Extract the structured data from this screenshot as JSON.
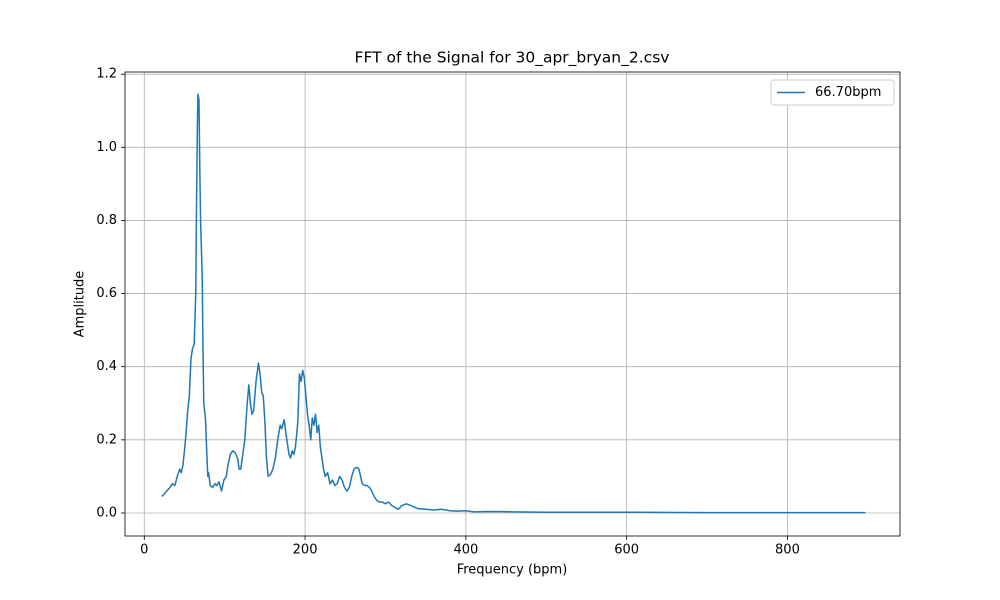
{
  "chart_data": {
    "type": "line",
    "title": "FFT of the Signal for 30_apr_bryan_2.csv",
    "xlabel": "Frequency (bpm)",
    "ylabel": "Amplitude",
    "x": [
      22,
      28,
      32,
      35,
      38,
      41,
      44,
      46,
      48,
      50,
      52,
      54,
      56,
      58,
      60,
      62,
      64,
      65,
      66,
      66.7,
      68,
      69,
      70,
      72,
      73,
      74,
      76,
      78,
      79,
      80,
      82,
      85,
      88,
      90,
      93,
      96,
      99,
      102,
      104,
      107,
      110,
      113,
      116,
      118,
      120,
      125,
      128,
      130,
      132,
      134,
      136,
      139,
      142,
      144,
      146,
      148,
      150,
      152,
      154,
      157,
      160,
      163,
      166,
      169,
      171,
      174,
      176,
      178,
      180,
      182,
      184,
      186,
      188,
      191,
      193,
      195,
      197,
      199,
      201,
      203,
      205,
      207,
      209,
      211,
      213,
      215,
      217,
      219,
      221,
      223,
      225,
      228,
      231,
      234,
      237,
      240,
      243,
      246,
      249,
      252,
      255,
      258,
      261,
      264,
      267,
      269,
      271,
      274,
      277,
      280,
      283,
      286,
      289,
      292,
      296,
      300,
      304,
      308,
      312,
      316,
      320,
      326,
      332,
      340,
      350,
      360,
      370,
      380,
      390,
      400,
      410,
      430,
      460,
      500,
      600,
      700,
      800,
      897
    ],
    "series": [
      {
        "name": "66.70bpm",
        "color": "#1f77b4",
        "values": [
          0.045,
          0.06,
          0.07,
          0.08,
          0.075,
          0.1,
          0.12,
          0.11,
          0.13,
          0.17,
          0.22,
          0.28,
          0.32,
          0.42,
          0.45,
          0.46,
          0.6,
          0.85,
          1.05,
          1.145,
          1.13,
          0.95,
          0.8,
          0.65,
          0.45,
          0.3,
          0.26,
          0.15,
          0.1,
          0.11,
          0.075,
          0.07,
          0.08,
          0.075,
          0.085,
          0.06,
          0.09,
          0.1,
          0.13,
          0.16,
          0.17,
          0.165,
          0.15,
          0.12,
          0.12,
          0.2,
          0.3,
          0.35,
          0.3,
          0.27,
          0.28,
          0.36,
          0.41,
          0.38,
          0.33,
          0.32,
          0.25,
          0.15,
          0.1,
          0.105,
          0.12,
          0.15,
          0.2,
          0.24,
          0.23,
          0.255,
          0.22,
          0.19,
          0.16,
          0.15,
          0.17,
          0.16,
          0.18,
          0.25,
          0.38,
          0.36,
          0.39,
          0.37,
          0.32,
          0.27,
          0.24,
          0.2,
          0.26,
          0.24,
          0.27,
          0.22,
          0.24,
          0.18,
          0.15,
          0.12,
          0.1,
          0.11,
          0.08,
          0.09,
          0.075,
          0.08,
          0.1,
          0.09,
          0.07,
          0.06,
          0.07,
          0.1,
          0.12,
          0.125,
          0.12,
          0.1,
          0.08,
          0.075,
          0.075,
          0.07,
          0.06,
          0.045,
          0.035,
          0.03,
          0.03,
          0.025,
          0.03,
          0.02,
          0.015,
          0.01,
          0.02,
          0.025,
          0.02,
          0.012,
          0.01,
          0.008,
          0.01,
          0.006,
          0.005,
          0.006,
          0.003,
          0.004,
          0.003,
          0.002,
          0.002,
          0.001,
          0.001,
          0.001
        ]
      }
    ],
    "xlim": [
      -24,
      940
    ],
    "xticks": [
      0,
      200,
      400,
      600,
      800
    ],
    "ylim": [
      -0.063,
      1.206
    ],
    "yticks": [
      {
        "value": 0,
        "label": "0.0"
      },
      0.2,
      0.4,
      0.6,
      0.8,
      {
        "value": 1,
        "label": "1.0"
      },
      1.2
    ],
    "grid": true,
    "legend": "upper right"
  }
}
